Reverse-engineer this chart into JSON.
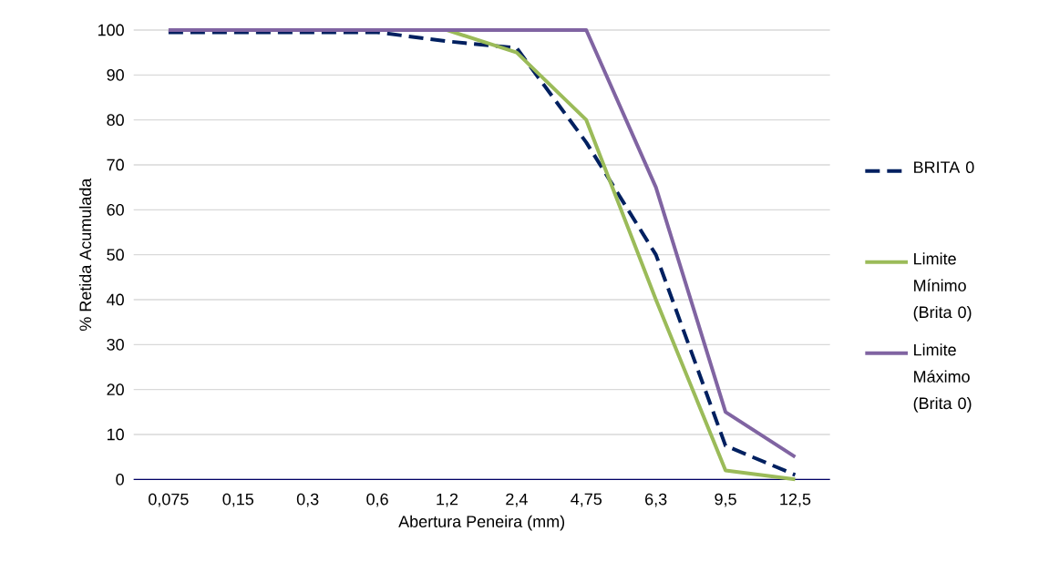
{
  "chart_data": {
    "type": "line",
    "xlabel": "Abertura Peneira (mm)",
    "ylabel": "% Retida Acumulada",
    "categories": [
      "0,075",
      "0,15",
      "0,3",
      "0,6",
      "1,2",
      "2,4",
      "4,75",
      "6,3",
      "9,5",
      "12,5"
    ],
    "series": [
      {
        "name": "BRITA 0",
        "color": "#002060",
        "line_style": "dashed",
        "values": [
          99.5,
          99.5,
          99.5,
          99.5,
          97.5,
          96,
          75,
          50,
          7.5,
          1
        ]
      },
      {
        "name": "Limite Mínimo (Brita 0)",
        "color": "#9bbb59",
        "line_style": "solid",
        "values": [
          null,
          null,
          null,
          100,
          100,
          95,
          80,
          40,
          2,
          0
        ]
      },
      {
        "name": "Limite Máximo (Brita 0)",
        "color": "#8064a2",
        "line_style": "solid",
        "values": [
          100,
          100,
          100,
          100,
          100,
          100,
          100,
          65,
          15,
          5
        ]
      }
    ],
    "ylim": [
      0,
      100
    ],
    "yticks": [
      0,
      10,
      20,
      30,
      40,
      50,
      60,
      70,
      80,
      90,
      100
    ],
    "grid": "y",
    "legend": "right"
  }
}
